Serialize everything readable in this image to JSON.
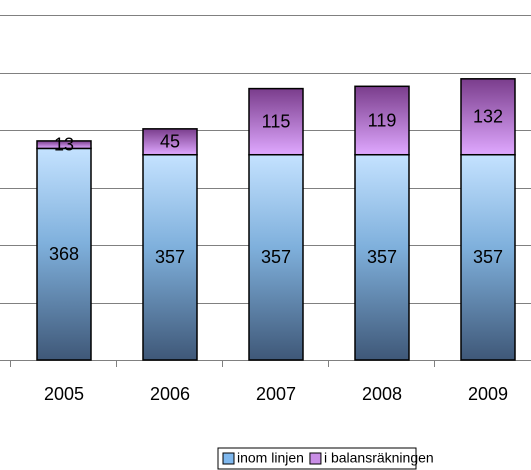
{
  "chart_data": {
    "type": "stacked_bar",
    "categories": [
      "2005",
      "2006",
      "2007",
      "2008",
      "2009"
    ],
    "series": [
      {
        "name": "inom linjen",
        "color": "#7fb8ee",
        "values": [
          368,
          357,
          357,
          357,
          357
        ]
      },
      {
        "name": "i balansräkningen",
        "color": "#c98ee6",
        "values": [
          13,
          45,
          115,
          119,
          132
        ]
      }
    ],
    "ylim": [
      0,
      600
    ],
    "yticks": [
      0,
      100,
      200,
      300,
      400,
      500,
      600
    ],
    "grid": true,
    "legend": "bottom"
  }
}
